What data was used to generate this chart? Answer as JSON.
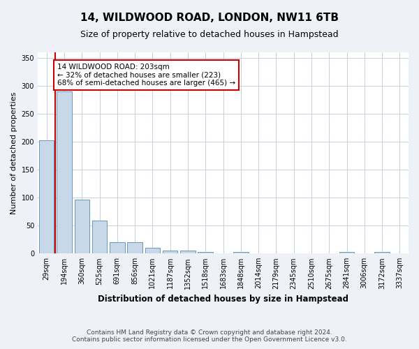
{
  "title": "14, WILDWOOD ROAD, LONDON, NW11 6TB",
  "subtitle": "Size of property relative to detached houses in Hampstead",
  "xlabel": "Distribution of detached houses by size in Hampstead",
  "ylabel": "Number of detached properties",
  "categories": [
    "29sqm",
    "194sqm",
    "360sqm",
    "525sqm",
    "691sqm",
    "856sqm",
    "1021sqm",
    "1187sqm",
    "1352sqm",
    "1518sqm",
    "1683sqm",
    "1848sqm",
    "2014sqm",
    "2179sqm",
    "2345sqm",
    "2510sqm",
    "2675sqm",
    "2841sqm",
    "3006sqm",
    "3172sqm",
    "3337sqm"
  ],
  "bar_heights": [
    203,
    290,
    97,
    59,
    20,
    20,
    10,
    5,
    5,
    3,
    0,
    3,
    0,
    0,
    0,
    0,
    0,
    3,
    0,
    3,
    0
  ],
  "bar_color": "#c8d8e8",
  "bar_edge_color": "#6699bb",
  "annotation_text": "14 WILDWOOD ROAD: 203sqm\n← 32% of detached houses are smaller (223)\n68% of semi-detached houses are larger (465) →",
  "annotation_box_color": "#ffffff",
  "annotation_box_edge": "#cc0000",
  "property_marker_color": "#cc0000",
  "ylim": [
    0,
    360
  ],
  "yticks": [
    0,
    50,
    100,
    150,
    200,
    250,
    300,
    350
  ],
  "footer_line1": "Contains HM Land Registry data © Crown copyright and database right 2024.",
  "footer_line2": "Contains public sector information licensed under the Open Government Licence v3.0.",
  "background_color": "#eef2f7",
  "plot_bg_color": "#ffffff",
  "grid_color": "#c8d0dc",
  "title_fontsize": 11,
  "subtitle_fontsize": 9,
  "axis_label_fontsize": 8,
  "tick_fontsize": 7,
  "annotation_fontsize": 7.5,
  "footer_fontsize": 6.5
}
